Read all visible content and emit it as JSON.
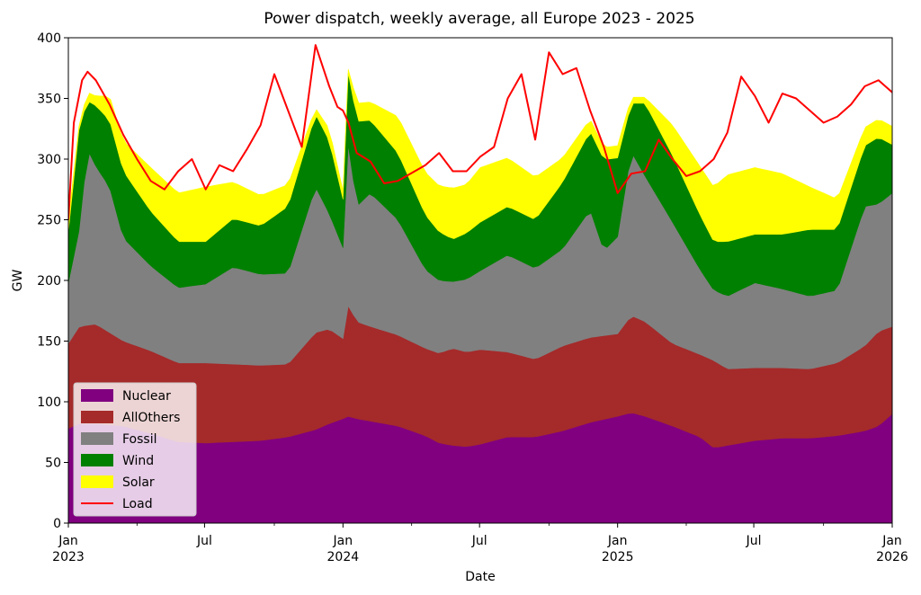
{
  "chart_data": {
    "type": "area",
    "stacked": true,
    "title": "Power dispatch, weekly average, all Europe 2023 - 2025",
    "xlabel": "Date",
    "ylabel": "GW",
    "ylim": [
      0,
      400
    ],
    "y_ticks": [
      0,
      50,
      100,
      150,
      200,
      250,
      300,
      350,
      400
    ],
    "x_range_years": [
      2023,
      2026
    ],
    "x_ticks": [
      {
        "t": 0.0,
        "line1": "Jan",
        "line2": "2023"
      },
      {
        "t": 0.4959,
        "line1": "Jul",
        "line2": ""
      },
      {
        "t": 1.0,
        "line1": "Jan",
        "line2": "2024"
      },
      {
        "t": 1.4973,
        "line1": "Jul",
        "line2": ""
      },
      {
        "t": 2.0,
        "line1": "Jan",
        "line2": "2025"
      },
      {
        "t": 2.4959,
        "line1": "Jul",
        "line2": ""
      },
      {
        "t": 3.0,
        "line1": "Jan",
        "line2": "2026"
      }
    ],
    "legend_location": "lower-left",
    "series": [
      {
        "name": "Nuclear",
        "color": "#800080",
        "type": "area",
        "t": [
          0,
          0.04,
          0.1,
          0.2,
          0.3,
          0.4,
          0.5,
          0.6,
          0.7,
          0.8,
          0.9,
          0.95,
          1.0,
          1.02,
          1.05,
          1.1,
          1.2,
          1.3,
          1.35,
          1.4,
          1.45,
          1.5,
          1.6,
          1.7,
          1.8,
          1.9,
          2.0,
          2.05,
          2.1,
          2.2,
          2.3,
          2.35,
          2.4,
          2.5,
          2.6,
          2.7,
          2.8,
          2.9,
          2.95,
          3.0
        ],
        "values": [
          78,
          82,
          82,
          80,
          74,
          67,
          66,
          67,
          68,
          71,
          77,
          82,
          86,
          88,
          86,
          84,
          80,
          72,
          66,
          64,
          63,
          65,
          71,
          71,
          76,
          83,
          88,
          91,
          88,
          80,
          71,
          62,
          64,
          68,
          70,
          70,
          72,
          76,
          80,
          90
        ]
      },
      {
        "name": "AllOthers",
        "color": "#a52a2a",
        "type": "area",
        "t": [
          0,
          0.04,
          0.1,
          0.2,
          0.3,
          0.4,
          0.5,
          0.6,
          0.7,
          0.8,
          0.9,
          0.95,
          1.0,
          1.02,
          1.05,
          1.1,
          1.2,
          1.3,
          1.35,
          1.4,
          1.45,
          1.5,
          1.6,
          1.7,
          1.8,
          1.9,
          2.0,
          2.05,
          2.1,
          2.2,
          2.3,
          2.35,
          2.4,
          2.5,
          2.6,
          2.7,
          2.8,
          2.9,
          2.95,
          3.0
        ],
        "values": [
          70,
          80,
          82,
          70,
          68,
          65,
          66,
          64,
          62,
          60,
          80,
          78,
          66,
          92,
          80,
          78,
          75,
          72,
          74,
          80,
          78,
          78,
          70,
          64,
          70,
          70,
          68,
          80,
          78,
          68,
          68,
          72,
          63,
          60,
          58,
          57,
          60,
          70,
          78,
          72
        ]
      },
      {
        "name": "Fossil",
        "color": "#808080",
        "type": "area",
        "t": [
          0,
          0.04,
          0.07,
          0.1,
          0.15,
          0.2,
          0.3,
          0.4,
          0.5,
          0.6,
          0.7,
          0.8,
          0.9,
          0.95,
          1.0,
          1.02,
          1.05,
          1.1,
          1.2,
          1.3,
          1.35,
          1.4,
          1.45,
          1.5,
          1.6,
          1.7,
          1.8,
          1.9,
          1.95,
          2.0,
          2.05,
          2.1,
          2.2,
          2.3,
          2.35,
          2.4,
          2.5,
          2.6,
          2.7,
          2.8,
          2.9,
          2.95,
          3.0
        ],
        "values": [
          50,
          80,
          145,
          130,
          120,
          85,
          70,
          62,
          65,
          80,
          75,
          75,
          120,
          95,
          75,
          135,
          95,
          110,
          95,
          65,
          60,
          55,
          60,
          65,
          80,
          75,
          80,
          105,
          70,
          80,
          135,
          120,
          100,
          70,
          58,
          60,
          70,
          65,
          60,
          60,
          115,
          105,
          110
        ]
      },
      {
        "name": "Wind",
        "color": "#008000",
        "type": "area",
        "t": [
          0,
          0.04,
          0.07,
          0.1,
          0.15,
          0.2,
          0.3,
          0.4,
          0.5,
          0.6,
          0.7,
          0.8,
          0.9,
          0.95,
          1.0,
          1.02,
          1.05,
          1.1,
          1.2,
          1.3,
          1.35,
          1.4,
          1.45,
          1.5,
          1.6,
          1.7,
          1.8,
          1.9,
          1.95,
          2.0,
          2.05,
          2.1,
          2.2,
          2.3,
          2.35,
          2.4,
          2.5,
          2.6,
          2.7,
          2.8,
          2.9,
          2.95,
          3.0
        ],
        "values": [
          42,
          85,
          40,
          50,
          55,
          55,
          45,
          38,
          35,
          40,
          40,
          55,
          60,
          60,
          40,
          60,
          70,
          60,
          55,
          45,
          40,
          35,
          38,
          40,
          40,
          40,
          55,
          65,
          75,
          65,
          40,
          60,
          55,
          45,
          40,
          45,
          40,
          45,
          55,
          50,
          50,
          55,
          40
        ]
      },
      {
        "name": "Solar",
        "color": "#ffff00",
        "type": "area",
        "t": [
          0,
          0.04,
          0.07,
          0.1,
          0.15,
          0.2,
          0.3,
          0.4,
          0.5,
          0.6,
          0.7,
          0.8,
          0.9,
          0.95,
          1.0,
          1.02,
          1.05,
          1.1,
          1.2,
          1.3,
          1.35,
          1.4,
          1.45,
          1.5,
          1.6,
          1.7,
          1.8,
          1.9,
          1.95,
          2.0,
          2.05,
          2.1,
          2.2,
          2.3,
          2.35,
          2.4,
          2.5,
          2.6,
          2.7,
          2.8,
          2.9,
          2.95,
          3.0
        ],
        "values": [
          10,
          3,
          7,
          8,
          20,
          25,
          36,
          40,
          45,
          30,
          25,
          18,
          5,
          10,
          7,
          3,
          15,
          15,
          30,
          35,
          38,
          42,
          40,
          45,
          40,
          35,
          20,
          10,
          10,
          10,
          5,
          5,
          25,
          40,
          45,
          55,
          55,
          50,
          35,
          25,
          15,
          15,
          15
        ]
      },
      {
        "name": "Load",
        "color": "#ff0000",
        "type": "line",
        "t": [
          0,
          0.02,
          0.05,
          0.07,
          0.1,
          0.15,
          0.2,
          0.25,
          0.3,
          0.35,
          0.4,
          0.45,
          0.5,
          0.55,
          0.6,
          0.65,
          0.7,
          0.75,
          0.8,
          0.85,
          0.9,
          0.95,
          0.98,
          1.0,
          1.02,
          1.05,
          1.1,
          1.15,
          1.2,
          1.3,
          1.35,
          1.4,
          1.45,
          1.5,
          1.55,
          1.6,
          1.65,
          1.7,
          1.75,
          1.8,
          1.85,
          1.9,
          1.95,
          2.0,
          2.05,
          2.1,
          2.15,
          2.2,
          2.25,
          2.3,
          2.35,
          2.4,
          2.45,
          2.5,
          2.55,
          2.6,
          2.65,
          2.7,
          2.75,
          2.8,
          2.85,
          2.9,
          2.95,
          3.0
        ],
        "values": [
          250,
          330,
          365,
          372,
          365,
          345,
          320,
          300,
          282,
          275,
          290,
          300,
          275,
          295,
          290,
          308,
          328,
          370,
          340,
          310,
          394,
          360,
          343,
          340,
          330,
          305,
          298,
          280,
          282,
          295,
          305,
          290,
          290,
          302,
          310,
          350,
          370,
          316,
          388,
          370,
          375,
          340,
          310,
          272,
          288,
          290,
          316,
          300,
          286,
          290,
          300,
          322,
          368,
          352,
          330,
          354,
          350,
          340,
          330,
          335,
          345,
          360,
          365,
          355
        ]
      }
    ]
  }
}
